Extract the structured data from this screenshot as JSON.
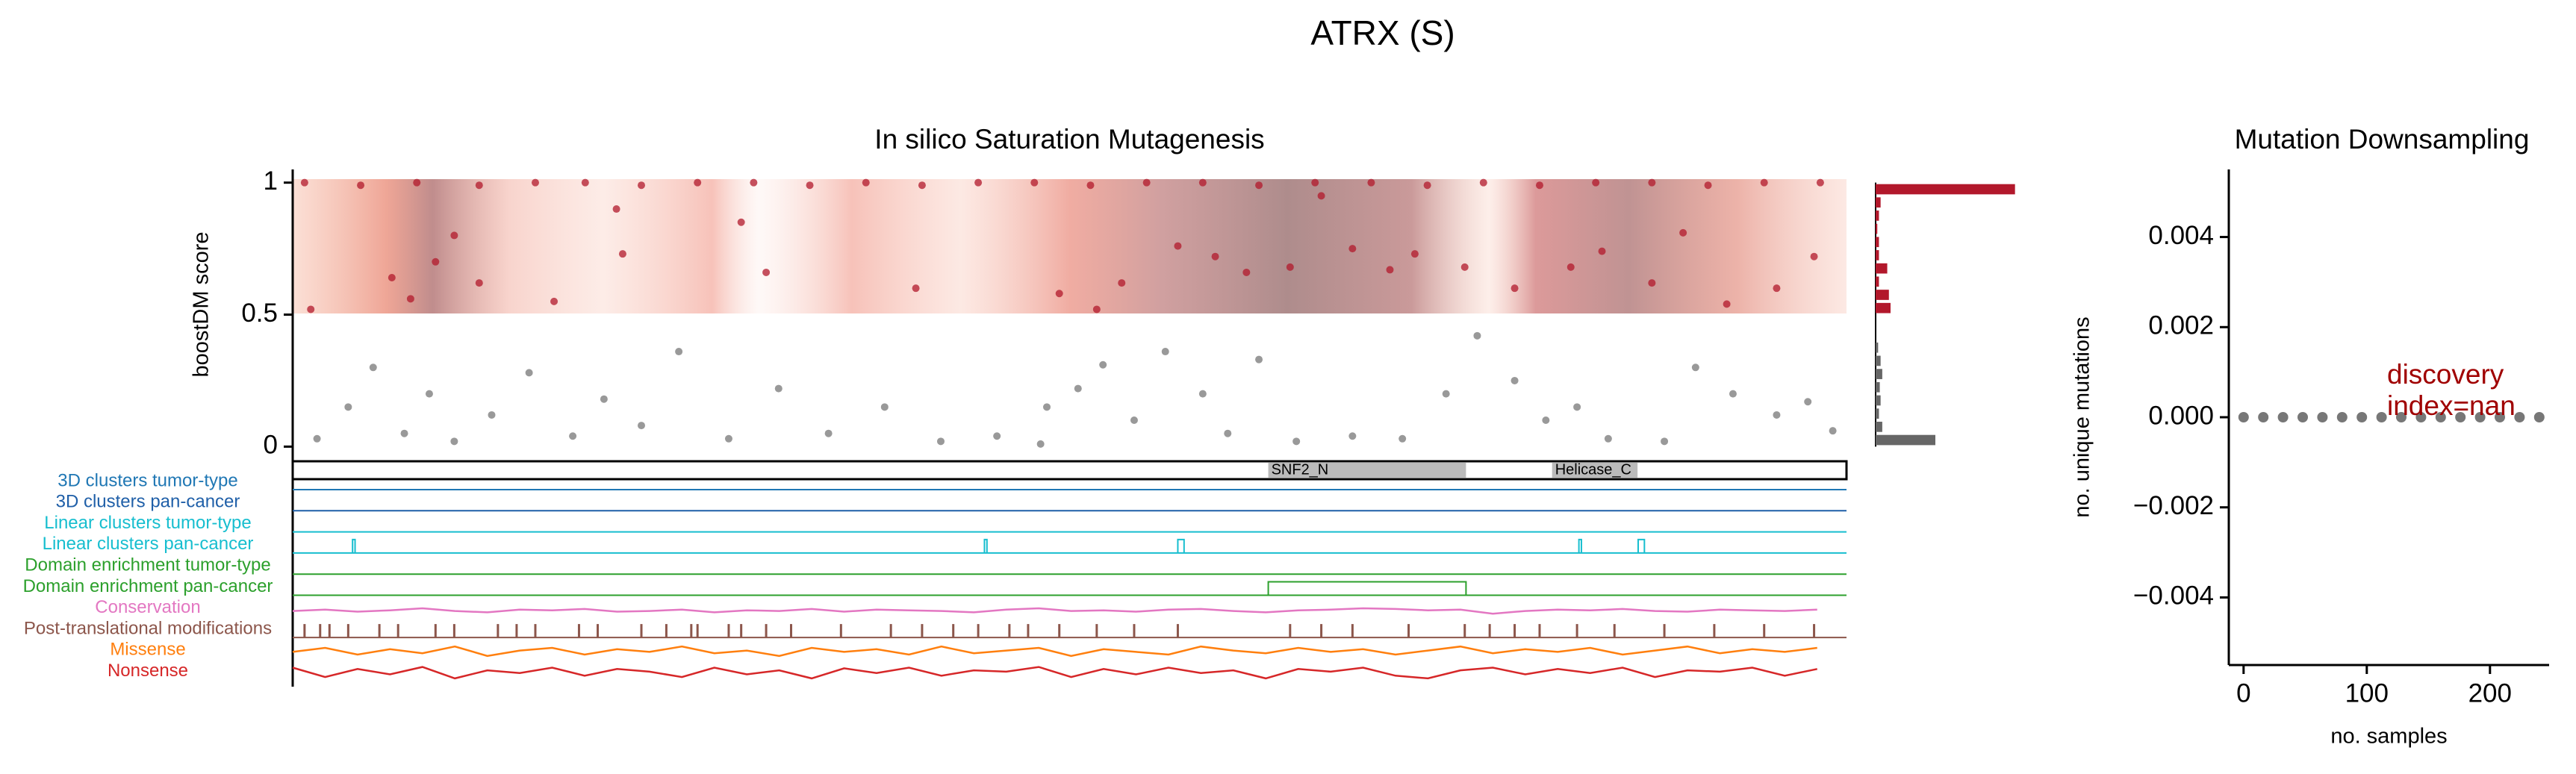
{
  "figure_title": "ATRX (S)",
  "chart_data": [
    {
      "type": "scatter",
      "title": "In silico Saturation Mutagenesis",
      "ylabel": "boostDM score",
      "xlim": [
        1,
        2492
      ],
      "ylim": [
        -0.03,
        1.05
      ],
      "yticks": [
        0,
        0.5,
        1
      ],
      "threshold": 0.5,
      "color_above": "#b2182b",
      "color_below": "#777777",
      "x": [
        20,
        110,
        200,
        300,
        390,
        470,
        560,
        650,
        740,
        830,
        920,
        1010,
        1100,
        1190,
        1280,
        1370,
        1460,
        1550,
        1640,
        1730,
        1820,
        1910,
        2000,
        2090,
        2180,
        2270,
        2360,
        2450,
        160,
        190,
        230,
        260,
        300,
        420,
        520,
        530,
        720,
        760,
        1000,
        1230,
        1290,
        1330,
        1420,
        1480,
        1530,
        1600,
        1650,
        1700,
        1760,
        1800,
        1880,
        1960,
        2050,
        2100,
        2180,
        2230,
        2300,
        2380,
        2440,
        30,
        40,
        90,
        130,
        180,
        220,
        260,
        320,
        380,
        450,
        500,
        560,
        620,
        700,
        780,
        860,
        950,
        1040,
        1130,
        1200,
        1210,
        1260,
        1300,
        1350,
        1400,
        1460,
        1500,
        1550,
        1610,
        1700,
        1780,
        1850,
        1900,
        1960,
        2010,
        2060,
        2110,
        2200,
        2250,
        2310,
        2380,
        2430,
        2470
      ],
      "values": [
        1,
        0.99,
        1,
        0.99,
        1,
        1,
        0.99,
        1,
        1,
        0.99,
        1,
        0.99,
        1,
        1,
        0.99,
        1,
        1,
        0.99,
        1,
        1,
        0.99,
        1,
        0.99,
        1,
        1,
        0.99,
        1,
        1,
        0.64,
        0.56,
        0.7,
        0.8,
        0.62,
        0.55,
        0.9,
        0.73,
        0.85,
        0.66,
        0.6,
        0.58,
        0.52,
        0.62,
        0.76,
        0.72,
        0.66,
        0.68,
        0.95,
        0.75,
        0.67,
        0.73,
        0.68,
        0.6,
        0.68,
        0.74,
        0.62,
        0.81,
        0.54,
        0.6,
        0.72,
        0.52,
        0.03,
        0.15,
        0.3,
        0.05,
        0.2,
        0.02,
        0.12,
        0.28,
        0.04,
        0.18,
        0.08,
        0.36,
        0.03,
        0.22,
        0.05,
        0.15,
        0.02,
        0.04,
        0.01,
        0.15,
        0.22,
        0.31,
        0.1,
        0.36,
        0.2,
        0.05,
        0.33,
        0.02,
        0.04,
        0.03,
        0.2,
        0.42,
        0.25,
        0.1,
        0.15,
        0.03,
        0.02,
        0.3,
        0.2,
        0.12,
        0.17,
        0.06
      ]
    },
    {
      "type": "histogram",
      "xlim": [
        0,
        900
      ],
      "ylim": [
        -0.03,
        1.05
      ],
      "bins": [
        0,
        0.05,
        0.1,
        0.15,
        0.2,
        0.25,
        0.3,
        0.35,
        0.4,
        0.45,
        0.5,
        0.55,
        0.6,
        0.65,
        0.7,
        0.75,
        0.8,
        0.85,
        0.9,
        0.95,
        1.0
      ],
      "values": [
        360,
        40,
        20,
        30,
        25,
        40,
        30,
        15,
        0,
        0,
        90,
        80,
        20,
        70,
        20,
        20,
        10,
        20,
        30,
        840
      ],
      "colors": [
        "#666666",
        "#666666",
        "#666666",
        "#666666",
        "#666666",
        "#666666",
        "#666666",
        "#666666",
        "#666666",
        "#666666",
        "#b2182b",
        "#b2182b",
        "#b2182b",
        "#b2182b",
        "#b2182b",
        "#b2182b",
        "#b2182b",
        "#b2182b",
        "#b2182b",
        "#b2182b"
      ]
    },
    {
      "type": "tracks",
      "xlim": [
        1,
        2492
      ],
      "domains": [
        {
          "name": "SNF2_N",
          "start": 1565,
          "end": 1882
        },
        {
          "name": "Helicase_C",
          "start": 2020,
          "end": 2157
        }
      ],
      "signal_x": [
        1,
        53,
        105,
        157,
        209,
        261,
        313,
        365,
        417,
        469,
        521,
        573,
        625,
        677,
        729,
        781,
        833,
        885,
        937,
        989,
        1041,
        1093,
        1145,
        1197,
        1249,
        1301,
        1353,
        1405,
        1457,
        1509,
        1561,
        1613,
        1665,
        1717,
        1769,
        1821,
        1873,
        1925,
        1977,
        2029,
        2081,
        2133,
        2185,
        2237,
        2289,
        2341,
        2393,
        2445
      ],
      "tracks": [
        {
          "name": "3D clusters tumor-type",
          "color": "#1f77b4",
          "kind": "flat"
        },
        {
          "name": "3D clusters pan-cancer",
          "color": "#1f5fa8",
          "kind": "flat"
        },
        {
          "name": "Linear clusters tumor-type",
          "color": "#17becf",
          "kind": "flat"
        },
        {
          "name": "Linear clusters pan-cancer",
          "color": "#17becf",
          "kind": "segments",
          "segments": [
            [
              97,
              101
            ],
            [
              1110,
              1114
            ],
            [
              1420,
              1430
            ],
            [
              2063,
              2067
            ],
            [
              2158,
              2168
            ]
          ]
        },
        {
          "name": "Domain enrichment tumor-type",
          "color": "#2ca02c",
          "kind": "flat"
        },
        {
          "name": "Domain enrichment pan-cancer",
          "color": "#2ca02c",
          "kind": "segments",
          "segments": [
            [
              1565,
              1882
            ]
          ]
        },
        {
          "name": "Conservation",
          "color": "#e377c2",
          "kind": "signal",
          "values": [
            0.4,
            0.5,
            0.35,
            0.45,
            0.6,
            0.4,
            0.3,
            0.5,
            0.45,
            0.55,
            0.35,
            0.4,
            0.5,
            0.3,
            0.45,
            0.4,
            0.55,
            0.35,
            0.5,
            0.45,
            0.4,
            0.3,
            0.5,
            0.6,
            0.4,
            0.45,
            0.35,
            0.5,
            0.55,
            0.4,
            0.3,
            0.45,
            0.5,
            0.6,
            0.55,
            0.45,
            0.5,
            0.2,
            0.4,
            0.5,
            0.45,
            0.55,
            0.4,
            0.35,
            0.5,
            0.45,
            0.4,
            0.5
          ]
        },
        {
          "name": "Post-translational modifications",
          "color": "#8c564b",
          "kind": "ticks",
          "positions": [
            20,
            45,
            60,
            90,
            140,
            170,
            230,
            260,
            330,
            360,
            390,
            460,
            490,
            560,
            600,
            640,
            650,
            700,
            720,
            760,
            800,
            880,
            960,
            1010,
            1060,
            1100,
            1150,
            1180,
            1230,
            1290,
            1350,
            1420,
            1600,
            1650,
            1700,
            1790,
            1880,
            1920,
            1960,
            2000,
            2060,
            2120,
            2200,
            2280,
            2360,
            2440
          ]
        },
        {
          "name": "Missense",
          "color": "#ff7f0e",
          "kind": "signal",
          "values": [
            0.5,
            0.8,
            0.3,
            0.7,
            0.4,
            0.9,
            0.2,
            0.6,
            0.8,
            0.3,
            0.7,
            0.5,
            0.9,
            0.4,
            0.6,
            0.2,
            0.8,
            0.5,
            0.7,
            0.3,
            0.9,
            0.4,
            0.6,
            0.8,
            0.2,
            0.7,
            0.5,
            0.3,
            0.9,
            0.6,
            0.4,
            0.8,
            0.5,
            0.7,
            0.3,
            0.6,
            0.9,
            0.4,
            0.7,
            0.5,
            0.8,
            0.3,
            0.6,
            0.9,
            0.4,
            0.7,
            0.5,
            0.8
          ]
        },
        {
          "name": "Nonsense",
          "color": "#d62728",
          "kind": "signal",
          "values": [
            0.9,
            0.2,
            0.8,
            0.4,
            0.95,
            0.1,
            0.7,
            0.5,
            0.9,
            0.3,
            0.8,
            0.6,
            0.2,
            0.9,
            0.4,
            0.7,
            0.1,
            0.85,
            0.5,
            0.9,
            0.3,
            0.7,
            0.6,
            0.95,
            0.2,
            0.8,
            0.4,
            0.9,
            0.5,
            0.7,
            0.1,
            0.8,
            0.6,
            0.9,
            0.3,
            0.1,
            0.7,
            0.9,
            0.4,
            0.8,
            0.5,
            0.9,
            0.2,
            0.7,
            0.6,
            0.9,
            0.3,
            0.8
          ]
        }
      ]
    },
    {
      "type": "scatter",
      "title": "Mutation Downsampling",
      "xlabel": "no. samples",
      "ylabel": "no. unique mutations",
      "annotation": [
        "discovery",
        "index=nan"
      ],
      "annotation_color": "#a00000",
      "color": "#777777",
      "xlim": [
        -12,
        248
      ],
      "ylim": [
        -0.0055,
        0.0055
      ],
      "xticks": [
        0,
        100,
        200
      ],
      "yticks": [
        {
          "value": -0.004,
          "label": "−0.004"
        },
        {
          "value": -0.002,
          "label": "−0.002"
        },
        {
          "value": 0,
          "label": "0.000"
        },
        0.002,
        0.004
      ],
      "x": [
        0,
        16,
        32,
        48,
        64,
        80,
        96,
        112,
        128,
        144,
        160,
        176,
        192,
        208,
        224,
        240
      ],
      "values": [
        0,
        0,
        0,
        0,
        0,
        0,
        0,
        0,
        0,
        0,
        0,
        0,
        0,
        0,
        0,
        0
      ]
    }
  ]
}
